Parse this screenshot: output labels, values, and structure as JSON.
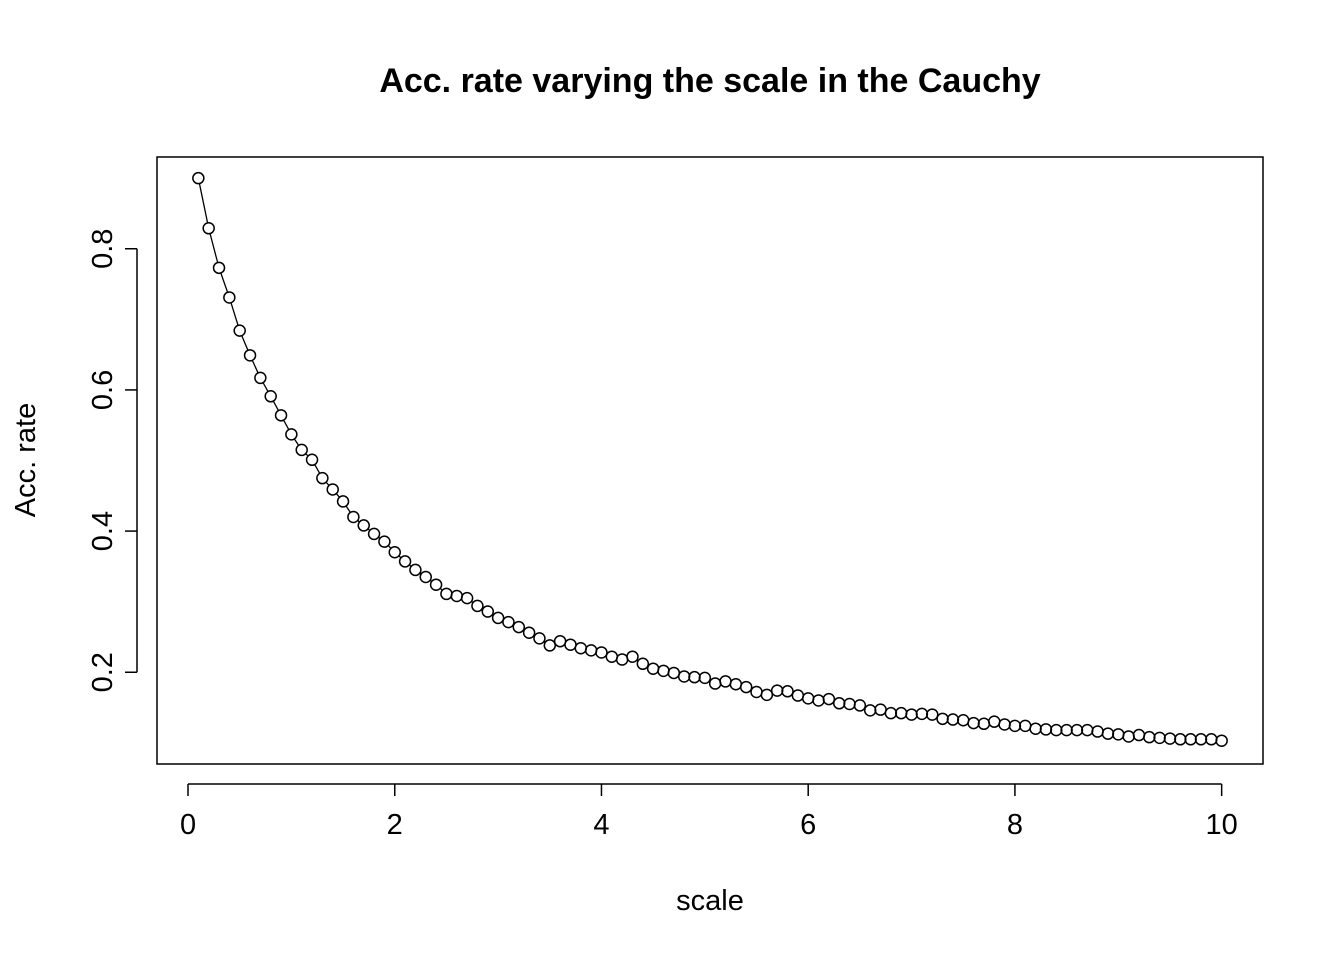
{
  "chart_data": {
    "type": "line",
    "title": "Acc. rate varying the scale in the Cauchy",
    "xlabel": "scale",
    "ylabel": "Acc. rate",
    "xlim": [
      -0.3,
      10.4
    ],
    "ylim": [
      0.07,
      0.93
    ],
    "x_ticks": [
      0,
      2,
      4,
      6,
      8,
      10
    ],
    "x_tick_labels": [
      "0",
      "2",
      "4",
      "6",
      "8",
      "10"
    ],
    "y_ticks": [
      0.2,
      0.4,
      0.6,
      0.8
    ],
    "y_tick_labels": [
      "0.2",
      "0.4",
      "0.6",
      "0.8"
    ],
    "grid": false,
    "marker": "open-circle",
    "series": [
      {
        "x": [
          0.1,
          0.2,
          0.3,
          0.4,
          0.5,
          0.6,
          0.7,
          0.8,
          0.9,
          1.0,
          1.1,
          1.2,
          1.3,
          1.4,
          1.5,
          1.6,
          1.7,
          1.8,
          1.9,
          2.0,
          2.1,
          2.2,
          2.3,
          2.4,
          2.5,
          2.6,
          2.7,
          2.8,
          2.9,
          3.0,
          3.1,
          3.2,
          3.3,
          3.4,
          3.5,
          3.6,
          3.7,
          3.8,
          3.9,
          4.0,
          4.1,
          4.2,
          4.3,
          4.4,
          4.5,
          4.6,
          4.7,
          4.8,
          4.9,
          5.0,
          5.1,
          5.2,
          5.3,
          5.4,
          5.5,
          5.6,
          5.7,
          5.8,
          5.9,
          6.0,
          6.1,
          6.2,
          6.3,
          6.4,
          6.5,
          6.6,
          6.7,
          6.8,
          6.9,
          7.0,
          7.1,
          7.2,
          7.3,
          7.4,
          7.5,
          7.6,
          7.7,
          7.8,
          7.9,
          8.0,
          8.1,
          8.2,
          8.3,
          8.4,
          8.5,
          8.6,
          8.7,
          8.8,
          8.9,
          9.0,
          9.1,
          9.2,
          9.3,
          9.4,
          9.5,
          9.6,
          9.7,
          9.8,
          9.9,
          10.0
        ],
        "values": [
          0.9,
          0.829,
          0.773,
          0.731,
          0.684,
          0.649,
          0.617,
          0.591,
          0.564,
          0.537,
          0.515,
          0.501,
          0.475,
          0.459,
          0.442,
          0.42,
          0.408,
          0.396,
          0.385,
          0.37,
          0.357,
          0.345,
          0.335,
          0.324,
          0.311,
          0.308,
          0.305,
          0.294,
          0.286,
          0.277,
          0.271,
          0.264,
          0.256,
          0.248,
          0.238,
          0.244,
          0.239,
          0.234,
          0.231,
          0.228,
          0.222,
          0.218,
          0.222,
          0.212,
          0.205,
          0.202,
          0.199,
          0.194,
          0.193,
          0.192,
          0.184,
          0.187,
          0.183,
          0.179,
          0.172,
          0.168,
          0.174,
          0.173,
          0.167,
          0.163,
          0.16,
          0.162,
          0.156,
          0.155,
          0.153,
          0.146,
          0.147,
          0.142,
          0.142,
          0.14,
          0.141,
          0.14,
          0.134,
          0.133,
          0.132,
          0.128,
          0.127,
          0.13,
          0.126,
          0.124,
          0.124,
          0.12,
          0.119,
          0.118,
          0.118,
          0.118,
          0.118,
          0.116,
          0.113,
          0.112,
          0.109,
          0.111,
          0.108,
          0.107,
          0.106,
          0.105,
          0.105,
          0.105,
          0.105,
          0.103
        ]
      }
    ]
  }
}
